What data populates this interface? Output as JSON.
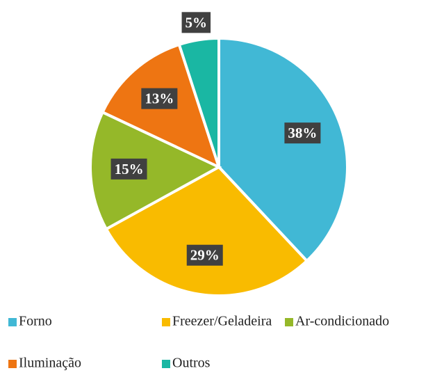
{
  "chart_data": {
    "type": "pie",
    "categories": [
      "Forno",
      "Freezer/Geladeira",
      "Ar-condicionado",
      "Iluminação",
      "Outros"
    ],
    "values": [
      38,
      29,
      15,
      13,
      5
    ],
    "value_labels": [
      "38%",
      "29%",
      "15%",
      "13%",
      "5%"
    ],
    "colors": [
      "#41b8d5",
      "#f9bb00",
      "#95b829",
      "#ee7512",
      "#1ab7a3"
    ],
    "legend": "bottom"
  }
}
